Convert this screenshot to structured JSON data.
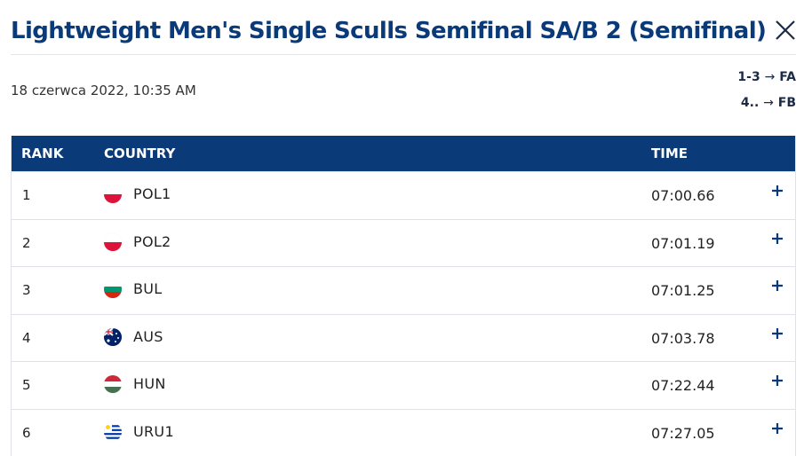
{
  "header": {
    "title": "Lightweight Men's Single Sculls Semifinal SA/B 2 (Semifinal)",
    "close_icon": "close-icon"
  },
  "meta": {
    "date": "18 czerwca 2022, 10:35 AM",
    "progression": [
      {
        "range": "1-3",
        "arrow": "→",
        "target": "FA"
      },
      {
        "range": "4..",
        "arrow": "→",
        "target": "FB"
      }
    ]
  },
  "table": {
    "headers": {
      "rank": "RANK",
      "country": "COUNTRY",
      "time": "TIME"
    },
    "rows": [
      {
        "rank": "1",
        "country": "POL1",
        "flag": "poland-flag-icon",
        "time": "07:00.66"
      },
      {
        "rank": "2",
        "country": "POL2",
        "flag": "poland-flag-icon",
        "time": "07:01.19"
      },
      {
        "rank": "3",
        "country": "BUL",
        "flag": "bulgaria-flag-icon",
        "time": "07:01.25"
      },
      {
        "rank": "4",
        "country": "AUS",
        "flag": "australia-flag-icon",
        "time": "07:03.78"
      },
      {
        "rank": "5",
        "country": "HUN",
        "flag": "hungary-flag-icon",
        "time": "07:22.44"
      },
      {
        "rank": "6",
        "country": "URU1",
        "flag": "uruguay-flag-icon",
        "time": "07:27.05"
      }
    ],
    "expand_icon": "plus-icon"
  },
  "colors": {
    "brand": "#0b3a78",
    "border": "#dfe3e8"
  }
}
